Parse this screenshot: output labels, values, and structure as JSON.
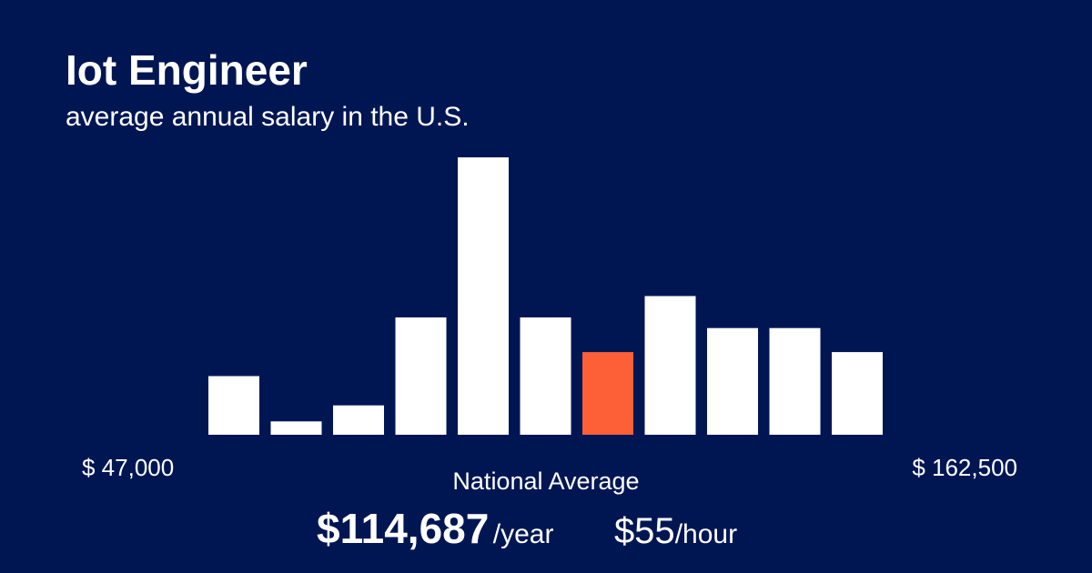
{
  "title": "Iot Engineer",
  "subtitle": "average annual salary in the U.S.",
  "range_min_label": "$ 47,000",
  "range_max_label": "$ 162,500",
  "national_average_label": "National Average",
  "annual_value": "$114,687",
  "annual_unit": "/year",
  "hourly_value": "$55",
  "hourly_unit": "/hour",
  "colors": {
    "background": "#001653",
    "bar": "#ffffff",
    "highlight": "#fd5f37"
  },
  "chart_data": {
    "type": "bar",
    "title": "",
    "xlabel": "",
    "ylabel": "",
    "x_range": [
      47000,
      162500
    ],
    "values": [
      22,
      5,
      11,
      44,
      104,
      44,
      31,
      52,
      40,
      40,
      31
    ],
    "highlight_index": 6,
    "ylim": [
      0,
      104
    ],
    "grid": false,
    "legend": "none"
  }
}
